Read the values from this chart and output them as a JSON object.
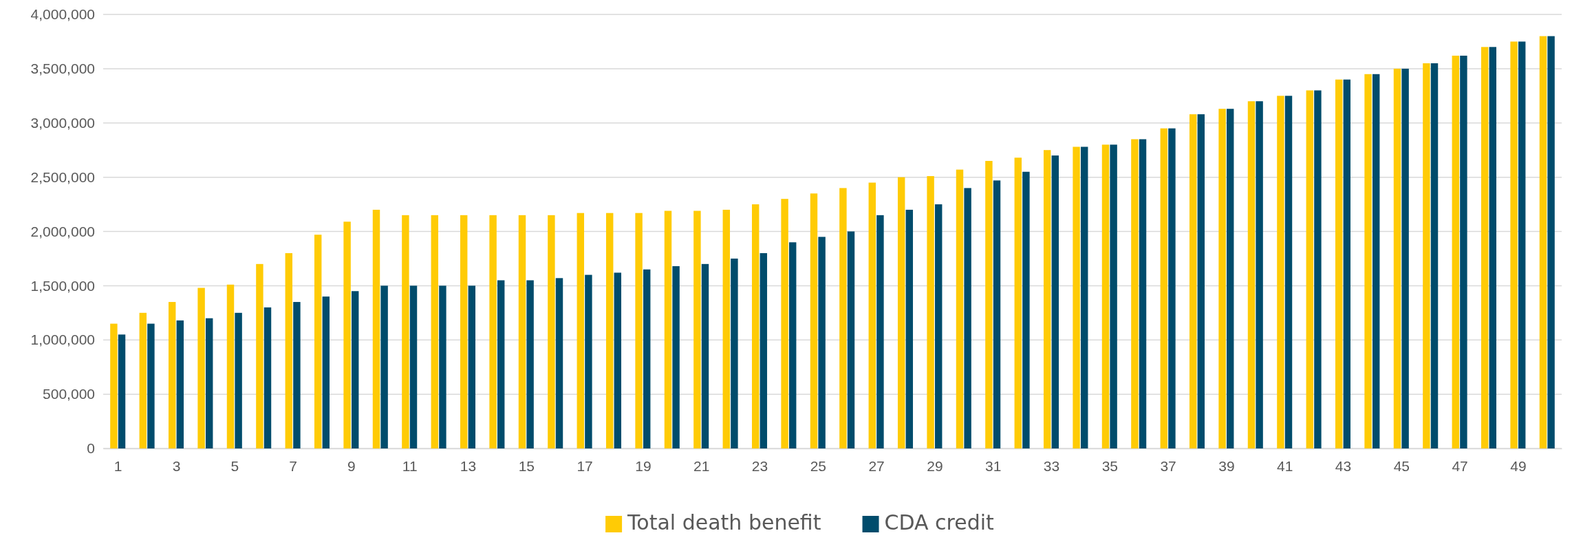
{
  "chart_data": {
    "type": "bar",
    "x": [
      1,
      2,
      3,
      4,
      5,
      6,
      7,
      8,
      9,
      10,
      11,
      12,
      13,
      14,
      15,
      16,
      17,
      18,
      19,
      20,
      21,
      22,
      23,
      24,
      25,
      26,
      27,
      28,
      29,
      30,
      31,
      32,
      33,
      34,
      35,
      36,
      37,
      38,
      39,
      40,
      41,
      42,
      43,
      44,
      45,
      46,
      47,
      48,
      49,
      50
    ],
    "xlim": [
      0.5,
      50.5
    ],
    "xticks": [
      1,
      3,
      5,
      7,
      9,
      11,
      13,
      15,
      17,
      19,
      21,
      23,
      25,
      27,
      29,
      31,
      33,
      35,
      37,
      39,
      41,
      43,
      45,
      47,
      49
    ],
    "series": [
      {
        "name": "Total death benefit",
        "color": "#ffcb05",
        "values": [
          1150000,
          1250000,
          1350000,
          1480000,
          1510000,
          1700000,
          1800000,
          1970000,
          2090000,
          2200000,
          2150000,
          2150000,
          2150000,
          2150000,
          2150000,
          2150000,
          2170000,
          2170000,
          2170000,
          2190000,
          2190000,
          2200000,
          2250000,
          2300000,
          2350000,
          2400000,
          2450000,
          2500000,
          2510000,
          2570000,
          2650000,
          2680000,
          2750000,
          2780000,
          2800000,
          2850000,
          2950000,
          3080000,
          3130000,
          3200000,
          3250000,
          3300000,
          3400000,
          3450000,
          3500000,
          3550000,
          3620000,
          3700000,
          3750000,
          3800000
        ]
      },
      {
        "name": "CDA credit",
        "color": "#004c6c",
        "values": [
          1050000,
          1150000,
          1180000,
          1200000,
          1250000,
          1300000,
          1350000,
          1400000,
          1450000,
          1500000,
          1500000,
          1500000,
          1500000,
          1550000,
          1550000,
          1570000,
          1600000,
          1620000,
          1650000,
          1680000,
          1700000,
          1750000,
          1800000,
          1900000,
          1950000,
          2000000,
          2150000,
          2200000,
          2250000,
          2400000,
          2470000,
          2550000,
          2700000,
          2780000,
          2800000,
          2850000,
          2950000,
          3080000,
          3130000,
          3200000,
          3250000,
          3300000,
          3400000,
          3450000,
          3500000,
          3550000,
          3620000,
          3700000,
          3750000,
          3800000
        ]
      }
    ],
    "ylim": [
      0,
      4000000
    ],
    "yticks": [
      {
        "value": 0,
        "label": "0"
      },
      {
        "value": 500000,
        "label": "500,000"
      },
      {
        "value": 1000000,
        "label": "1,000,000"
      },
      {
        "value": 1500000,
        "label": "1,500,000"
      },
      {
        "value": 2000000,
        "label": "2,000,000"
      },
      {
        "value": 2500000,
        "label": "2,500,000"
      },
      {
        "value": 3000000,
        "label": "3,000,000"
      },
      {
        "value": 3500000,
        "label": "3,500,000"
      },
      {
        "value": 4000000,
        "label": "4,000,000"
      }
    ],
    "grid": "y",
    "legend": "bottom"
  }
}
